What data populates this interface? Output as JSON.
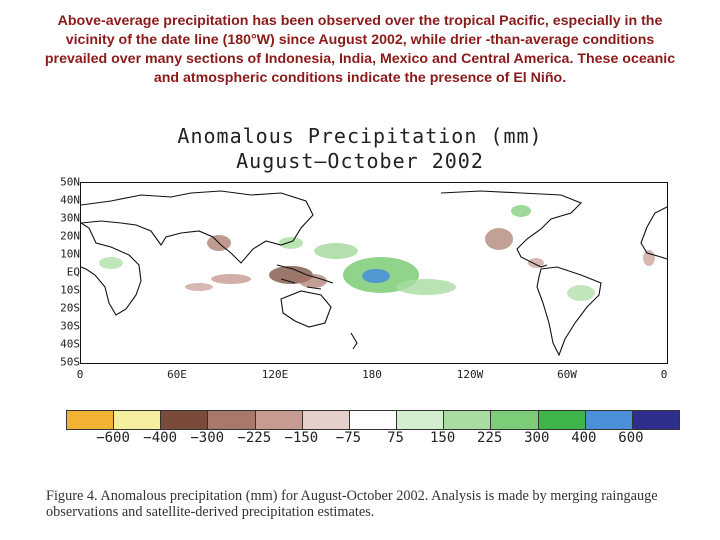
{
  "header": {
    "description": "Above-average precipitation has been observed over the tropical Pacific, especially in the vicinity of the date line (180°W) since August 2002, while drier -than-average conditions prevailed over many sections of Indonesia, India, Mexico and Central America. These oceanic and atmospheric conditions indicate the presence of El Niño."
  },
  "map": {
    "title_line1": "Anomalous Precipitation (mm)",
    "title_line2": "August—October 2002",
    "lat_labels": [
      "50N",
      "40N",
      "30N",
      "20N",
      "10N",
      "EQ",
      "10S",
      "20S",
      "30S",
      "40S",
      "50S"
    ],
    "lon_labels": [
      "0",
      "60E",
      "120E",
      "180",
      "120W",
      "60W",
      "0"
    ]
  },
  "colorbar": {
    "labels": [
      "−600",
      "−400",
      "−300",
      "−225",
      "−150",
      "−75",
      "75",
      "150",
      "225",
      "300",
      "400",
      "600"
    ],
    "colors": [
      "#f2b233",
      "#f5f0a0",
      "#7a4a3a",
      "#a8786a",
      "#c89a92",
      "#e6d0cc",
      "#ffffff",
      "#d4ecd0",
      "#a8dca0",
      "#7ccc78",
      "#3eb44a",
      "#4a90d8",
      "#2e2e8c"
    ]
  },
  "caption": {
    "text": "Figure 4. Anomalous precipitation (mm) for August-October 2002. Analysis is made by merging raingauge observations and satellite-derived precipitation estimates."
  }
}
